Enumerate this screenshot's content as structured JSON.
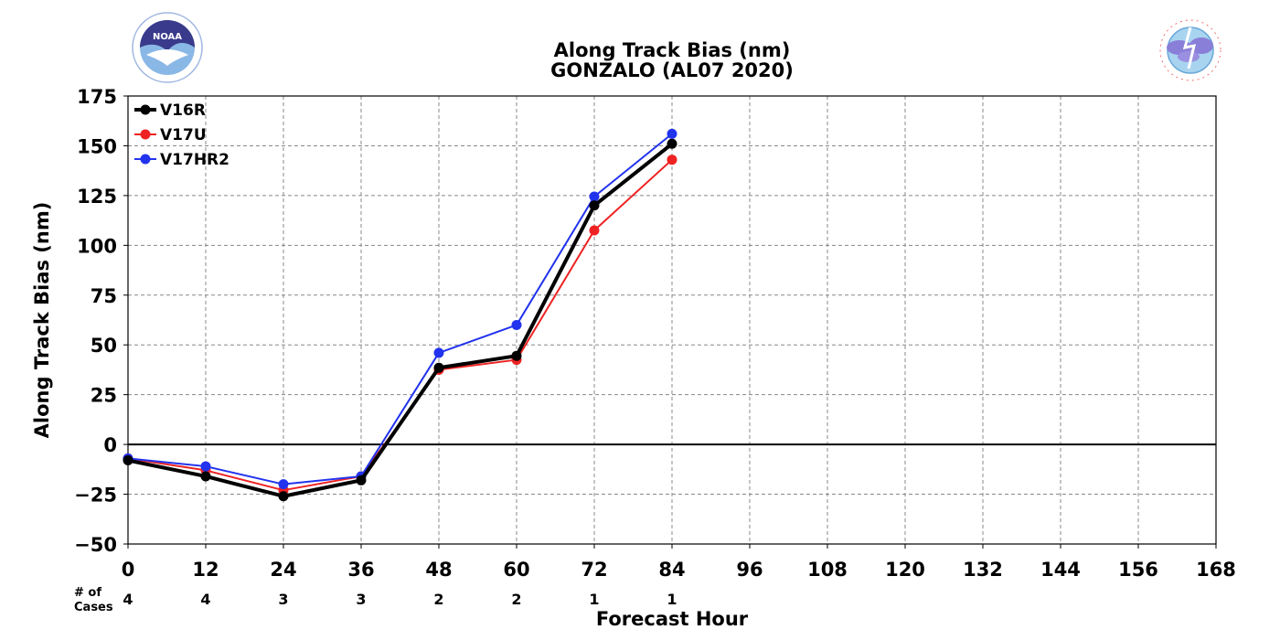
{
  "logos": {
    "left": {
      "name": "NOAA",
      "ring_text": "NATIONAL OCEANIC AND ATMOSPHERIC ADMINISTRATION",
      "bottom_text": "U.S. DEPARTMENT OF COMMERCE"
    },
    "right": {
      "ring_text": "NATIONAL WEATHER SERVICE"
    }
  },
  "cases": {
    "label_line1": "# of",
    "label_line2": "Cases",
    "values": [
      "4",
      "4",
      "3",
      "3",
      "2",
      "2",
      "1",
      "1"
    ]
  },
  "colors": {
    "V16R": "#000000",
    "V17U": "#ee2222",
    "V17HR2": "#2233ee",
    "grid": "#888888"
  },
  "chart_data": {
    "type": "line",
    "title": "Along Track Bias (nm)",
    "subtitle": "GONZALO (AL07 2020)",
    "xlabel": "Forecast Hour",
    "ylabel": "Along Track Bias (nm)",
    "xlim": [
      0,
      168
    ],
    "ylim": [
      -50,
      175
    ],
    "xticks": [
      0,
      12,
      24,
      36,
      48,
      60,
      72,
      84,
      96,
      108,
      120,
      132,
      144,
      156,
      168
    ],
    "yticks": [
      -50,
      -25,
      0,
      25,
      50,
      75,
      100,
      125,
      150,
      175
    ],
    "ytick_labels": [
      "−50",
      "−25",
      "0",
      "25",
      "50",
      "75",
      "100",
      "125",
      "150",
      "175"
    ],
    "grid": true,
    "legend_position": "top-left",
    "x": [
      0,
      12,
      24,
      36,
      48,
      60,
      72,
      84
    ],
    "series": [
      {
        "name": "V16R",
        "values": [
          -8,
          -16,
          -26,
          -18,
          38.5,
          44.5,
          120,
          151
        ]
      },
      {
        "name": "V17U",
        "values": [
          -7,
          -13,
          -23,
          -16,
          37.5,
          42.5,
          107.5,
          143
        ]
      },
      {
        "name": "V17HR2",
        "values": [
          -7,
          -11,
          -20,
          -16,
          46,
          60,
          124.5,
          156
        ]
      }
    ]
  }
}
